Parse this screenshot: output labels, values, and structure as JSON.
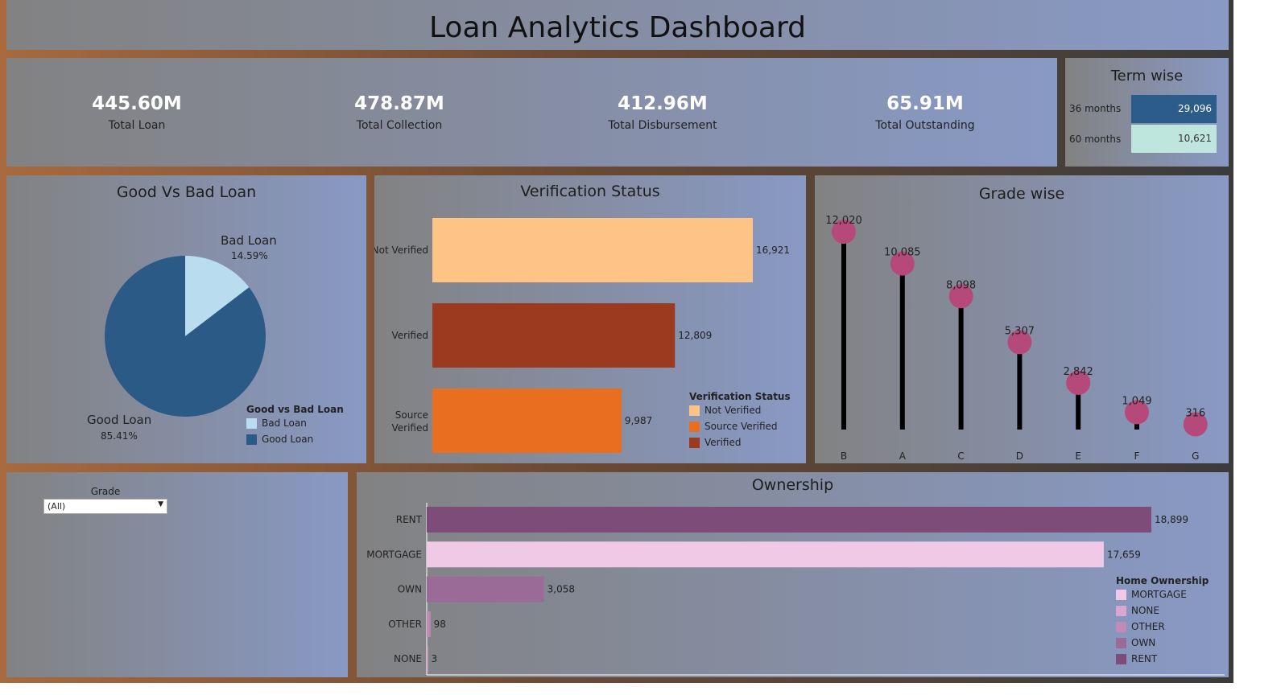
{
  "title": "Loan Analytics Dashboard",
  "kpis": [
    {
      "value": "445.60M",
      "label": "Total Loan"
    },
    {
      "value": "478.87M",
      "label": "Total Collection"
    },
    {
      "value": "412.96M",
      "label": "Total Disbursement"
    },
    {
      "value": "65.91M",
      "label": "Total Outstanding"
    }
  ],
  "term": {
    "title": "Term wise",
    "rows": [
      {
        "label": "36 months",
        "value": "29,096",
        "color": "#2b5c8a",
        "text_color": "#ffffff"
      },
      {
        "label": "60 months",
        "value": "10,621",
        "color": "#bfe6dc",
        "text_color": "#333333"
      }
    ]
  },
  "filter": {
    "label": "Grade",
    "selected": "(All)"
  },
  "colors": {
    "good": "#2b5a87",
    "bad": "#b9dcef",
    "grade_dot": "#b5497a"
  },
  "chart_data": [
    {
      "type": "pie",
      "title": "Good Vs Bad Loan",
      "legend_title": "Good vs Bad Loan",
      "slices": [
        {
          "name": "Bad Loan",
          "value": 14.59,
          "label": "14.59%",
          "color": "#b9dcef"
        },
        {
          "name": "Good Loan",
          "value": 85.41,
          "label": "85.41%",
          "color": "#2b5a87"
        }
      ],
      "legend": [
        {
          "name": "Bad Loan",
          "color": "#b9dcef"
        },
        {
          "name": "Good Loan",
          "color": "#2b5a87"
        }
      ]
    },
    {
      "type": "bar",
      "orientation": "horizontal",
      "title": "Verification Status",
      "categories": [
        "Not Verified",
        "Verified",
        "Source Verified"
      ],
      "values": [
        16921,
        12809,
        9987
      ],
      "labels": [
        "16,921",
        "12,809",
        "9,987"
      ],
      "colors": [
        "#fdc486",
        "#9c3a20",
        "#ea6e20"
      ],
      "legend_title": "Verification Status",
      "legend": [
        {
          "name": "Not Verified",
          "color": "#fdc486"
        },
        {
          "name": "Source Verified",
          "color": "#ea6e20"
        },
        {
          "name": "Verified",
          "color": "#9c3a20"
        }
      ]
    },
    {
      "type": "bar",
      "style": "lollipop",
      "title": "Grade wise",
      "categories": [
        "B",
        "A",
        "C",
        "D",
        "E",
        "F",
        "G"
      ],
      "values": [
        12020,
        10085,
        8098,
        5307,
        2842,
        1049,
        316
      ],
      "labels": [
        "12,020",
        "10,085",
        "8,098",
        "5,307",
        "2,842",
        "1,049",
        "316"
      ]
    },
    {
      "type": "bar",
      "orientation": "horizontal",
      "title": "Ownership",
      "categories": [
        "RENT",
        "MORTGAGE",
        "OWN",
        "OTHER",
        "NONE"
      ],
      "values": [
        18899,
        17659,
        3058,
        98,
        3
      ],
      "labels": [
        "18,899",
        "17,659",
        "3,058",
        "98",
        "3"
      ],
      "colors": [
        "#7e4c79",
        "#efc9e6",
        "#9a6b97",
        "#c28bb7",
        "#d9a6cd"
      ],
      "legend_title": "Home Ownership",
      "legend": [
        {
          "name": "MORTGAGE",
          "color": "#efc9e6"
        },
        {
          "name": "NONE",
          "color": "#d9a6cd"
        },
        {
          "name": "OTHER",
          "color": "#c28bb7"
        },
        {
          "name": "OWN",
          "color": "#9a6b97"
        },
        {
          "name": "RENT",
          "color": "#7e4c79"
        }
      ]
    }
  ]
}
